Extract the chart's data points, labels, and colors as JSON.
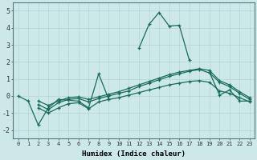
{
  "xlabel": "Humidex (Indice chaleur)",
  "background_color": "#cce8e8",
  "grid_color": "#b8d8d8",
  "line_color": "#1a6b5a",
  "xlim": [
    -0.5,
    23.5
  ],
  "ylim": [
    -2.5,
    5.5
  ],
  "xticks": [
    0,
    1,
    2,
    3,
    4,
    5,
    6,
    7,
    8,
    9,
    10,
    11,
    12,
    13,
    14,
    15,
    16,
    17,
    18,
    19,
    20,
    21,
    22,
    23
  ],
  "yticks": [
    -2,
    -1,
    0,
    1,
    2,
    3,
    4,
    5
  ],
  "series": [
    [
      0,
      -0.3,
      -1.7,
      -0.7,
      -0.2,
      -0.25,
      -0.3,
      -0.7,
      1.3,
      -0.2,
      null,
      null,
      2.8,
      4.2,
      4.9,
      4.1,
      4.15,
      2.1,
      null,
      1.4,
      0.05,
      0.35,
      -0.3,
      -0.3
    ],
    [
      null,
      null,
      -0.5,
      -0.8,
      -0.4,
      -0.2,
      -0.15,
      -0.35,
      -0.15,
      0.0,
      0.15,
      0.3,
      0.55,
      0.75,
      0.95,
      1.15,
      1.3,
      1.45,
      1.55,
      1.35,
      0.8,
      0.55,
      0.15,
      -0.2
    ],
    [
      null,
      null,
      -0.3,
      -0.55,
      -0.3,
      -0.1,
      -0.05,
      -0.2,
      -0.05,
      0.1,
      0.25,
      0.45,
      0.65,
      0.85,
      1.05,
      1.25,
      1.4,
      1.5,
      1.6,
      1.5,
      0.9,
      0.65,
      0.25,
      -0.1
    ],
    [
      null,
      null,
      -0.7,
      -1.0,
      -0.7,
      -0.45,
      -0.4,
      -0.75,
      -0.35,
      -0.2,
      -0.1,
      0.05,
      0.2,
      0.35,
      0.5,
      0.65,
      0.75,
      0.85,
      0.9,
      0.8,
      0.3,
      0.15,
      -0.1,
      -0.35
    ]
  ]
}
